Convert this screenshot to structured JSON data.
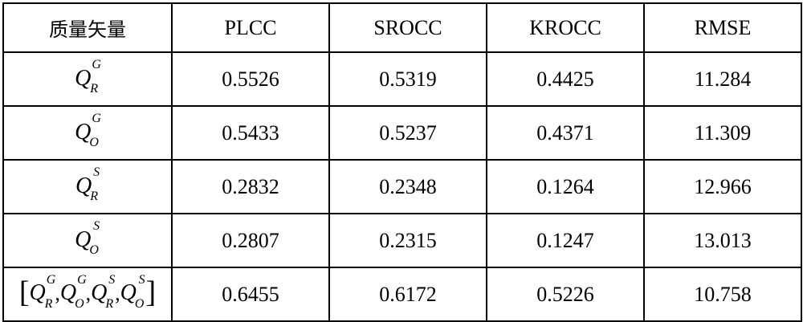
{
  "table": {
    "header": {
      "quality_vector": "质量矢量",
      "plcc": "PLCC",
      "srocc": "SROCC",
      "krocc": "KROCC",
      "rmse": "RMSE"
    },
    "rows": [
      {
        "symbol": {
          "base": "Q",
          "sup": "G",
          "sub": "R"
        },
        "plcc": "0.5526",
        "srocc": "0.5319",
        "krocc": "0.4425",
        "rmse": "11.284"
      },
      {
        "symbol": {
          "base": "Q",
          "sup": "G",
          "sub": "O"
        },
        "plcc": "0.5433",
        "srocc": "0.5237",
        "krocc": "0.4371",
        "rmse": "11.309"
      },
      {
        "symbol": {
          "base": "Q",
          "sup": "S",
          "sub": "R"
        },
        "plcc": "0.2832",
        "srocc": "0.2348",
        "krocc": "0.1264",
        "rmse": "12.966"
      },
      {
        "symbol": {
          "base": "Q",
          "sup": "S",
          "sub": "O"
        },
        "plcc": "0.2807",
        "srocc": "0.2315",
        "krocc": "0.1247",
        "rmse": "13.013"
      },
      {
        "combined": {
          "open": "[",
          "close": "]",
          "sep": ",",
          "items": [
            {
              "base": "Q",
              "sup": "G",
              "sub": "R"
            },
            {
              "base": "Q",
              "sup": "G",
              "sub": "O"
            },
            {
              "base": "Q",
              "sup": "S",
              "sub": "R"
            },
            {
              "base": "Q",
              "sup": "S",
              "sub": "O"
            }
          ]
        },
        "plcc": "0.6455",
        "srocc": "0.6172",
        "krocc": "0.5226",
        "rmse": "10.758"
      }
    ]
  }
}
